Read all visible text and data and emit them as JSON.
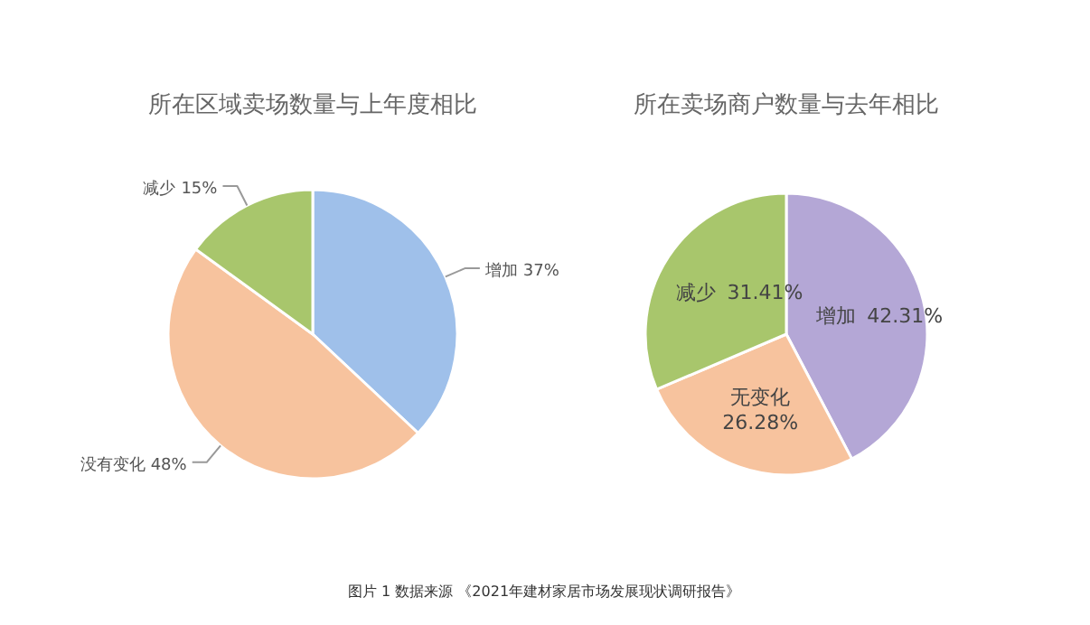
{
  "chart_data": [
    {
      "type": "pie",
      "title": "所在区域卖场数量与上年度相比",
      "categories": [
        "增加",
        "没有变化",
        "减少"
      ],
      "values": [
        37,
        48,
        15
      ],
      "value_labels": [
        "37%",
        "48%",
        "15%"
      ],
      "colors": [
        "#9fc0ea",
        "#f7c39e",
        "#a8c66c"
      ]
    },
    {
      "type": "pie",
      "title": "所在卖场商户数量与去年相比",
      "categories": [
        "增加",
        "无变化",
        "减少"
      ],
      "values": [
        42.31,
        26.28,
        31.41
      ],
      "value_labels": [
        "42.31%",
        "26.28%",
        "31.41%"
      ],
      "colors": [
        "#b4a7d6",
        "#f7c39e",
        "#a8c66c"
      ],
      "annotations": [
        "图片 1 数据来源 《2021年建材家居市场发展现状调研报告》"
      ]
    }
  ]
}
